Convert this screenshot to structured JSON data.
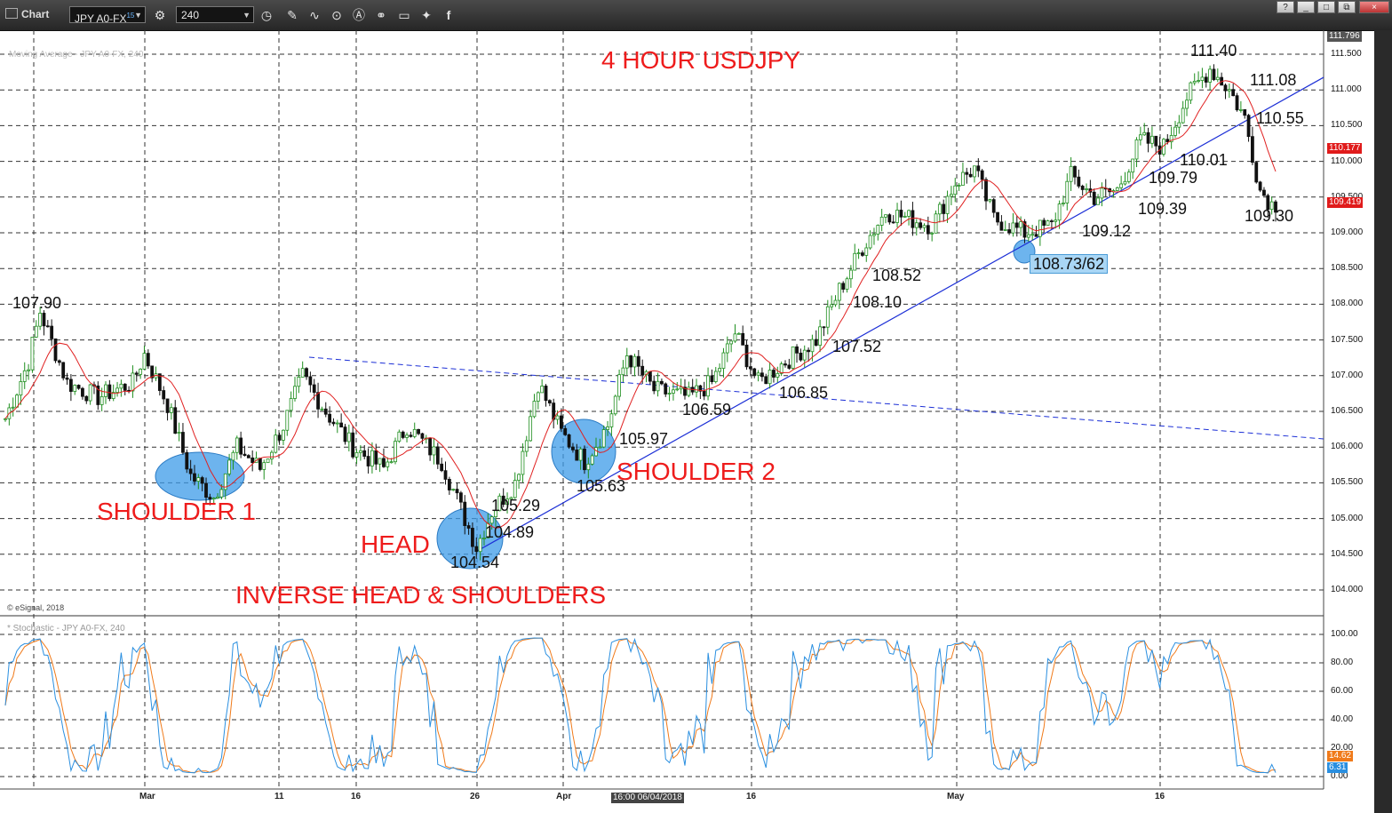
{
  "toolbar": {
    "app_title": "Chart",
    "symbol": "JPY A0-FX",
    "symbol_superscript": "15",
    "interval": "240",
    "window_buttons": [
      "?",
      "_",
      "□",
      "⧉",
      "×"
    ]
  },
  "chart_title": "4 HOUR USDJPY",
  "pattern_label": "INVERSE HEAD & SHOULDERS",
  "watermark_price": "Moving Average - JPY A0-FX, 240",
  "watermark_stoch": "* Stochastic - JPY A0-FX, 240",
  "copyright": "© eSignal, 2018",
  "crosshair_time": "16:00 06/04/2018",
  "labels": {
    "shoulder1": "SHOULDER 1",
    "head": "HEAD",
    "shoulder2": "SHOULDER 2"
  },
  "price_labels": {
    "p107_90": "107.90",
    "p105_29": "105.29",
    "p104_89": "104.89",
    "p104_54": "104.54",
    "p105_97": "105.97",
    "p105_63": "105.63",
    "p106_59": "106.59",
    "p106_85": "106.85",
    "p107_52": "107.52",
    "p108_10": "108.10",
    "p108_52": "108.52",
    "p108_73": "108.73/62",
    "p109_12": "109.12",
    "p109_39": "109.39",
    "p109_79": "109.79",
    "p110_01": "110.01",
    "p110_55": "110.55",
    "p111_08": "111.08",
    "p111_40": "111.40",
    "p109_30": "109.30"
  },
  "price_axis": [
    "111.500",
    "111.000",
    "110.500",
    "110.000",
    "109.500",
    "109.000",
    "108.500",
    "108.000",
    "107.500",
    "107.000",
    "106.500",
    "106.000",
    "105.500",
    "105.000",
    "104.500",
    "104.000"
  ],
  "price_badges": {
    "top": "111.796",
    "ma": "110.177",
    "last": "109.419"
  },
  "stoch_axis": [
    "100.00",
    "80.00",
    "60.00",
    "40.00",
    "20.00",
    "0.00"
  ],
  "stoch_badges": {
    "k": "14.62",
    "d": "6.31"
  },
  "x_axis": [
    {
      "label": "Mar"
    },
    {
      "label": "11"
    },
    {
      "label": "16"
    },
    {
      "label": "26"
    },
    {
      "label": "Apr"
    },
    {
      "label": "16"
    },
    {
      "label": "May"
    },
    {
      "label": "16"
    }
  ],
  "colors": {
    "up_candle": "#1f8f1f",
    "down_candle": "#111111",
    "moving_average": "#e02020",
    "trendline": "#1c2fd6",
    "ellipse": "#3c9be8",
    "stoch_k": "#2a8fe0",
    "stoch_d": "#f07a1a",
    "annotation": "#ee1c1c"
  },
  "chart_data": [
    {
      "type": "candlestick",
      "title": "4 HOUR USDJPY",
      "series_name": "JPY A0-FX, 240",
      "ylim": [
        103.8,
        111.85
      ],
      "grid": true,
      "close_anchors": [
        {
          "t": 0,
          "v": 106.4
        },
        {
          "t": 6,
          "v": 107.2
        },
        {
          "t": 9,
          "v": 107.9
        },
        {
          "t": 16,
          "v": 106.9
        },
        {
          "t": 24,
          "v": 106.7
        },
        {
          "t": 33,
          "v": 106.9
        },
        {
          "t": 36,
          "v": 107.3
        },
        {
          "t": 42,
          "v": 106.6
        },
        {
          "t": 48,
          "v": 105.6
        },
        {
          "t": 54,
          "v": 105.3
        },
        {
          "t": 60,
          "v": 106.0
        },
        {
          "t": 66,
          "v": 105.7
        },
        {
          "t": 72,
          "v": 106.3
        },
        {
          "t": 77,
          "v": 107.0
        },
        {
          "t": 83,
          "v": 106.5
        },
        {
          "t": 90,
          "v": 106.0
        },
        {
          "t": 98,
          "v": 105.7
        },
        {
          "t": 104,
          "v": 106.3
        },
        {
          "t": 113,
          "v": 105.8
        },
        {
          "t": 119,
          "v": 105.0
        },
        {
          "t": 122,
          "v": 104.6
        },
        {
          "t": 126,
          "v": 105.1
        },
        {
          "t": 132,
          "v": 105.5
        },
        {
          "t": 138,
          "v": 106.9
        },
        {
          "t": 144,
          "v": 106.2
        },
        {
          "t": 150,
          "v": 105.8
        },
        {
          "t": 156,
          "v": 106.3
        },
        {
          "t": 161,
          "v": 107.3
        },
        {
          "t": 168,
          "v": 106.8
        },
        {
          "t": 177,
          "v": 106.7
        },
        {
          "t": 183,
          "v": 106.9
        },
        {
          "t": 189,
          "v": 107.6
        },
        {
          "t": 195,
          "v": 106.9
        },
        {
          "t": 202,
          "v": 107.2
        },
        {
          "t": 210,
          "v": 107.5
        },
        {
          "t": 216,
          "v": 108.2
        },
        {
          "t": 222,
          "v": 108.8
        },
        {
          "t": 228,
          "v": 109.3
        },
        {
          "t": 234,
          "v": 109.2
        },
        {
          "t": 240,
          "v": 109.1
        },
        {
          "t": 246,
          "v": 109.7
        },
        {
          "t": 251,
          "v": 109.9
        },
        {
          "t": 256,
          "v": 109.2
        },
        {
          "t": 264,
          "v": 109.0
        },
        {
          "t": 271,
          "v": 109.1
        },
        {
          "t": 276,
          "v": 109.8
        },
        {
          "t": 282,
          "v": 109.5
        },
        {
          "t": 288,
          "v": 109.6
        },
        {
          "t": 294,
          "v": 110.3
        },
        {
          "t": 300,
          "v": 110.2
        },
        {
          "t": 306,
          "v": 110.9
        },
        {
          "t": 312,
          "v": 111.3
        },
        {
          "t": 317,
          "v": 111.0
        },
        {
          "t": 321,
          "v": 110.6
        },
        {
          "t": 325,
          "v": 109.6
        },
        {
          "t": 328,
          "v": 109.4
        }
      ],
      "support_trendline": [
        {
          "t": 122,
          "v": 104.54
        },
        {
          "t": 329,
          "v": 110.8
        }
      ],
      "neckline": [
        {
          "t": 80,
          "v": 107.25
        },
        {
          "t": 329,
          "v": 106.1
        }
      ],
      "annotations": [
        "107.90",
        "105.29",
        "104.89",
        "104.54",
        "105.97",
        "105.63",
        "106.59",
        "106.85",
        "107.52",
        "108.10",
        "108.52",
        "108.73/62",
        "109.12",
        "109.39",
        "109.79",
        "110.01",
        "110.55",
        "111.08",
        "111.40",
        "109.30"
      ]
    },
    {
      "type": "line",
      "title": "Stochastic - JPY A0-FX, 240",
      "ylim": [
        0,
        100
      ],
      "series": [
        {
          "values_note": ""
        }
      ]
    }
  ]
}
